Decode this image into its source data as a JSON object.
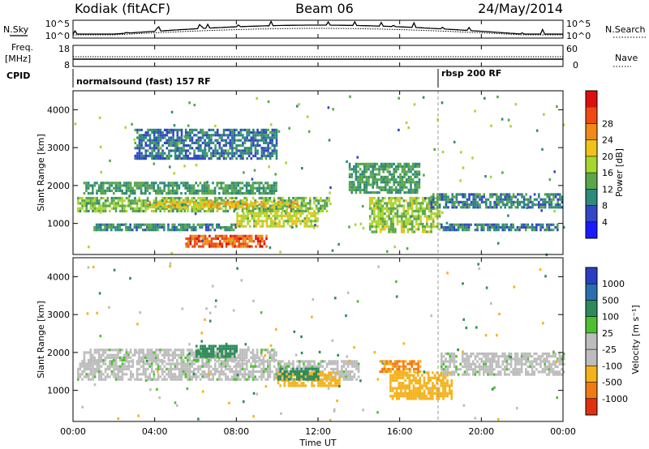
{
  "header": {
    "station": "Kodiak (fitACF)",
    "beam": "Beam 06",
    "date": "24/May/2014"
  },
  "nsky_panel": {
    "left_label": "N.Sky",
    "right_label": "N.Search",
    "left_ticks": [
      "10^5",
      "10^0"
    ],
    "right_ticks": [
      "10^5",
      "10^0"
    ]
  },
  "freq_panel": {
    "left_label_1": "Freq.",
    "left_label_2": "[MHz]",
    "right_label": "Nave",
    "left_ticks": [
      "18",
      "8"
    ],
    "right_ticks": [
      "60",
      "0"
    ]
  },
  "cpid_panel": {
    "label": "CPID",
    "segments": [
      {
        "text": "normalsound (fast) 157 RF",
        "start_hour": 0
      },
      {
        "text": "rbsp 200 RF",
        "start_hour": 18.0
      }
    ]
  },
  "axes": {
    "xlabel": "Time UT",
    "x_ticks": [
      "00:00",
      "04:00",
      "08:00",
      "12:00",
      "16:00",
      "20:00",
      "00:00"
    ],
    "y_ticks": [
      "1000",
      "2000",
      "3000",
      "4000"
    ],
    "ylabel": "Slant Range [km]"
  },
  "power_colorbar": {
    "label": "Power [dB]",
    "ticks": [
      "4",
      "8",
      "12",
      "16",
      "20",
      "24",
      "28"
    ],
    "colors": [
      "#1a1aff",
      "#3347c4",
      "#2e8a7a",
      "#5aa64a",
      "#a8d62e",
      "#f0c21a",
      "#f08a18",
      "#ee4a12",
      "#dd1010"
    ]
  },
  "velocity_colorbar": {
    "label": "Velocity [m s⁻¹]",
    "ticks": [
      "1000",
      "500",
      "100",
      "25",
      "-25",
      "-100",
      "-500",
      "-1000"
    ],
    "colors": [
      "#2a3ec4",
      "#2b6fb0",
      "#2e8a5a",
      "#4cc030",
      "#bdbdbd",
      "#bdbdbd",
      "#f5b21a",
      "#f07a14",
      "#e03010"
    ]
  },
  "chart_data": {
    "type": "heatmap",
    "x_range_hours": [
      0,
      24
    ],
    "y_range_km": [
      180,
      4500
    ],
    "power_echo_bands": [
      {
        "t0": 0.2,
        "t1": 12.5,
        "r0": 1300,
        "r1": 1700,
        "level_db": 13
      },
      {
        "t0": 3.5,
        "t1": 11.0,
        "r0": 1400,
        "r1": 1600,
        "level_db": 20
      },
      {
        "t0": 0.5,
        "t1": 10.0,
        "r0": 1800,
        "r1": 2100,
        "level_db": 10
      },
      {
        "t0": 5.5,
        "t1": 9.5,
        "r0": 400,
        "r1": 700,
        "level_db": 27
      },
      {
        "t0": 1.0,
        "t1": 8.0,
        "r0": 800,
        "r1": 1000,
        "level_db": 9
      },
      {
        "t0": 8.0,
        "t1": 12.0,
        "r0": 900,
        "r1": 1300,
        "level_db": 17
      },
      {
        "t0": 14.5,
        "t1": 18.0,
        "r0": 800,
        "r1": 1700,
        "level_db": 15
      },
      {
        "t0": 13.5,
        "t1": 17.0,
        "r0": 1800,
        "r1": 2600,
        "level_db": 10
      },
      {
        "t0": 17.5,
        "t1": 24.0,
        "r0": 1400,
        "r1": 1800,
        "level_db": 8
      },
      {
        "t0": 18.0,
        "t1": 24.0,
        "r0": 800,
        "r1": 1000,
        "level_db": 7
      },
      {
        "t0": 3.0,
        "t1": 10.0,
        "r0": 2700,
        "r1": 3500,
        "level_db": 7
      }
    ],
    "velocity_echo_bands": [
      {
        "t0": 0.2,
        "t1": 14.0,
        "r0": 1300,
        "r1": 1800,
        "velocity": 0
      },
      {
        "t0": 0.5,
        "t1": 10.0,
        "r0": 1800,
        "r1": 2100,
        "velocity": 0
      },
      {
        "t0": 10.0,
        "t1": 13.0,
        "r0": 1100,
        "r1": 1500,
        "velocity": -300
      },
      {
        "t0": 15.5,
        "t1": 18.5,
        "r0": 800,
        "r1": 1500,
        "velocity": -300
      },
      {
        "t0": 15.0,
        "t1": 17.0,
        "r0": 1500,
        "r1": 1800,
        "velocity": -500
      },
      {
        "t0": 10.0,
        "t1": 12.0,
        "r0": 1300,
        "r1": 1600,
        "velocity": 200
      },
      {
        "t0": 6.0,
        "t1": 8.0,
        "r0": 1900,
        "r1": 2200,
        "velocity": 200
      },
      {
        "t0": 18.0,
        "t1": 24.0,
        "r0": 1400,
        "r1": 2000,
        "velocity": 0
      }
    ]
  }
}
